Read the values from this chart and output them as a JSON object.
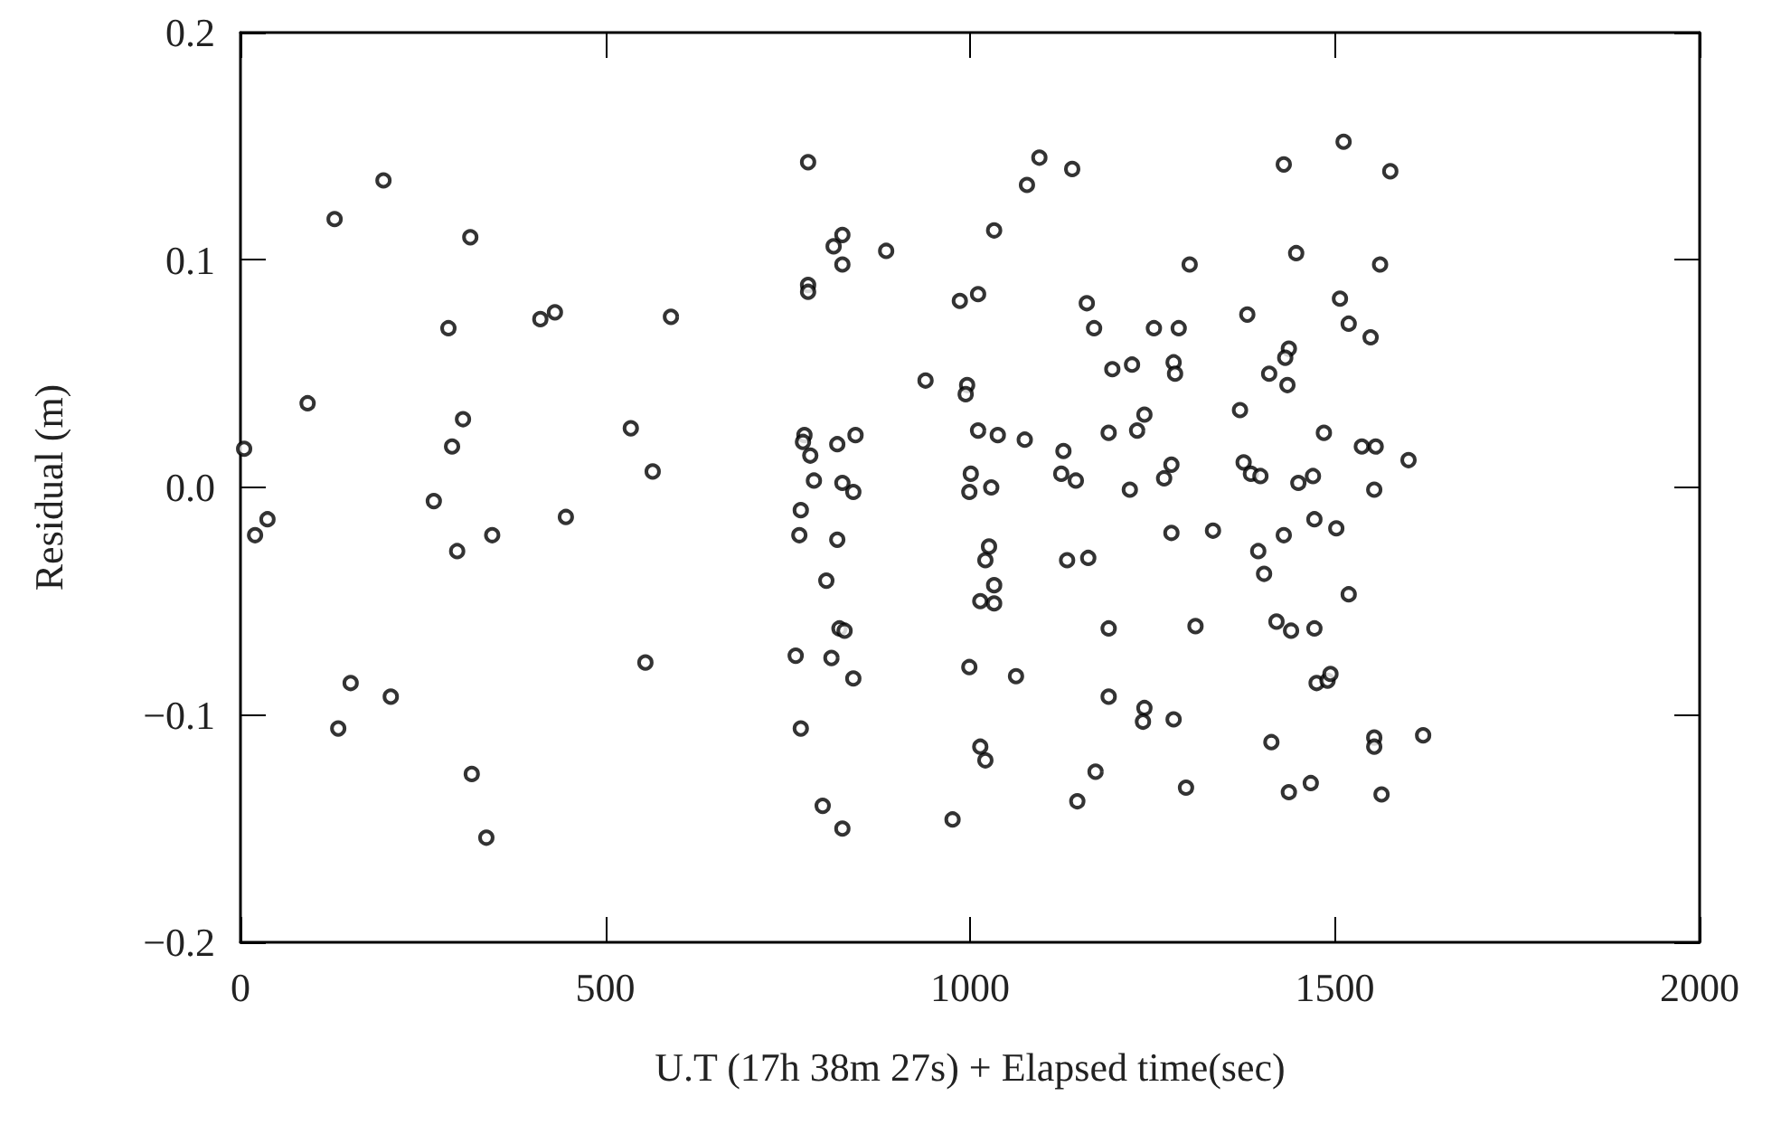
{
  "chart_data": {
    "type": "scatter",
    "xlabel": "U.T (17h 38m 27s) + Elapsed time(sec)",
    "ylabel": "Residual (m)",
    "xlim": [
      0,
      2000
    ],
    "xticks": [
      0,
      500,
      1000,
      1500,
      2000
    ],
    "ylim": [
      -0.2,
      0.2
    ],
    "yticks": [
      {
        "value": -0.2,
        "label": "−0.2"
      },
      {
        "value": -0.1,
        "label": "−0.1"
      },
      {
        "value": 0,
        "label": "0.0"
      },
      0.1,
      0.2
    ],
    "grid": false,
    "marker": "circle",
    "series": [
      {
        "color": "#000000",
        "x": [
          196,
          129,
          315,
          285,
          411,
          431,
          590,
          92,
          305,
          290,
          535,
          565,
          5,
          265,
          37,
          20,
          297,
          345,
          446,
          555,
          151,
          206,
          134,
          317,
          337,
          778,
          1095,
          1140,
          1078,
          1033,
          825,
          813,
          885,
          825,
          1301,
          778,
          778,
          986,
          1011,
          1160,
          1170,
          1252,
          1286,
          1195,
          1222,
          1279,
          1281,
          939,
          996,
          994,
          1239,
          1190,
          1229,
          773,
          771,
          781,
          818,
          843,
          1011,
          1038,
          1075,
          1128,
          1125,
          1145,
          1219,
          1276,
          1266,
          786,
          825,
          840,
          1001,
          999,
          1029,
          1512,
          1430,
          1576,
          1447,
          1562,
          1507,
          1380,
          1519,
          1549,
          1437,
          1432,
          1410,
          1435,
          1370,
          1485,
          1537,
          1556,
          1601,
          1375,
          1385,
          1398,
          1450,
          1470,
          1554,
          768,
          766,
          818,
          803,
          821,
          828,
          761,
          810,
          840,
          768,
          798,
          825,
          1026,
          1021,
          1033,
          1014,
          1033,
          1133,
          1162,
          1276,
          1333,
          1190,
          1309,
          999,
          1063,
          1190,
          1239,
          1237,
          1279,
          1014,
          1021,
          1172,
          1147,
          1296,
          976,
          1430,
          1472,
          1502,
          1395,
          1403,
          1519,
          1420,
          1440,
          1472,
          1475,
          1490,
          1494,
          1413,
          1554,
          1554,
          1621,
          1437,
          1467,
          1564
        ],
        "values": [
          0.135,
          0.118,
          0.11,
          0.07,
          0.074,
          0.077,
          0.075,
          0.037,
          0.03,
          0.018,
          0.026,
          0.007,
          0.017,
          -0.006,
          -0.014,
          -0.021,
          -0.028,
          -0.021,
          -0.013,
          -0.077,
          -0.086,
          -0.092,
          -0.106,
          -0.126,
          -0.154,
          0.143,
          0.145,
          0.14,
          0.133,
          0.113,
          0.111,
          0.106,
          0.104,
          0.098,
          0.098,
          0.089,
          0.086,
          0.082,
          0.085,
          0.081,
          0.07,
          0.07,
          0.07,
          0.052,
          0.054,
          0.055,
          0.05,
          0.047,
          0.045,
          0.041,
          0.032,
          0.024,
          0.025,
          0.023,
          0.02,
          0.014,
          0.019,
          0.023,
          0.025,
          0.023,
          0.021,
          0.016,
          0.006,
          0.003,
          -0.001,
          0.01,
          0.004,
          0.003,
          0.002,
          -0.002,
          0.006,
          -0.002,
          0.0,
          0.152,
          0.142,
          0.139,
          0.103,
          0.098,
          0.083,
          0.076,
          0.072,
          0.066,
          0.061,
          0.057,
          0.05,
          0.045,
          0.034,
          0.024,
          0.018,
          0.018,
          0.012,
          0.011,
          0.006,
          0.005,
          0.002,
          0.005,
          -0.001,
          -0.01,
          -0.021,
          -0.023,
          -0.041,
          -0.062,
          -0.063,
          -0.074,
          -0.075,
          -0.084,
          -0.106,
          -0.14,
          -0.15,
          -0.026,
          -0.032,
          -0.043,
          -0.05,
          -0.051,
          -0.032,
          -0.031,
          -0.02,
          -0.019,
          -0.062,
          -0.061,
          -0.079,
          -0.083,
          -0.092,
          -0.097,
          -0.103,
          -0.102,
          -0.114,
          -0.12,
          -0.125,
          -0.138,
          -0.132,
          -0.146,
          -0.021,
          -0.014,
          -0.018,
          -0.028,
          -0.038,
          -0.047,
          -0.059,
          -0.063,
          -0.062,
          -0.086,
          -0.085,
          -0.082,
          -0.112,
          -0.11,
          -0.114,
          -0.109,
          -0.134,
          -0.13,
          -0.135
        ]
      }
    ]
  }
}
